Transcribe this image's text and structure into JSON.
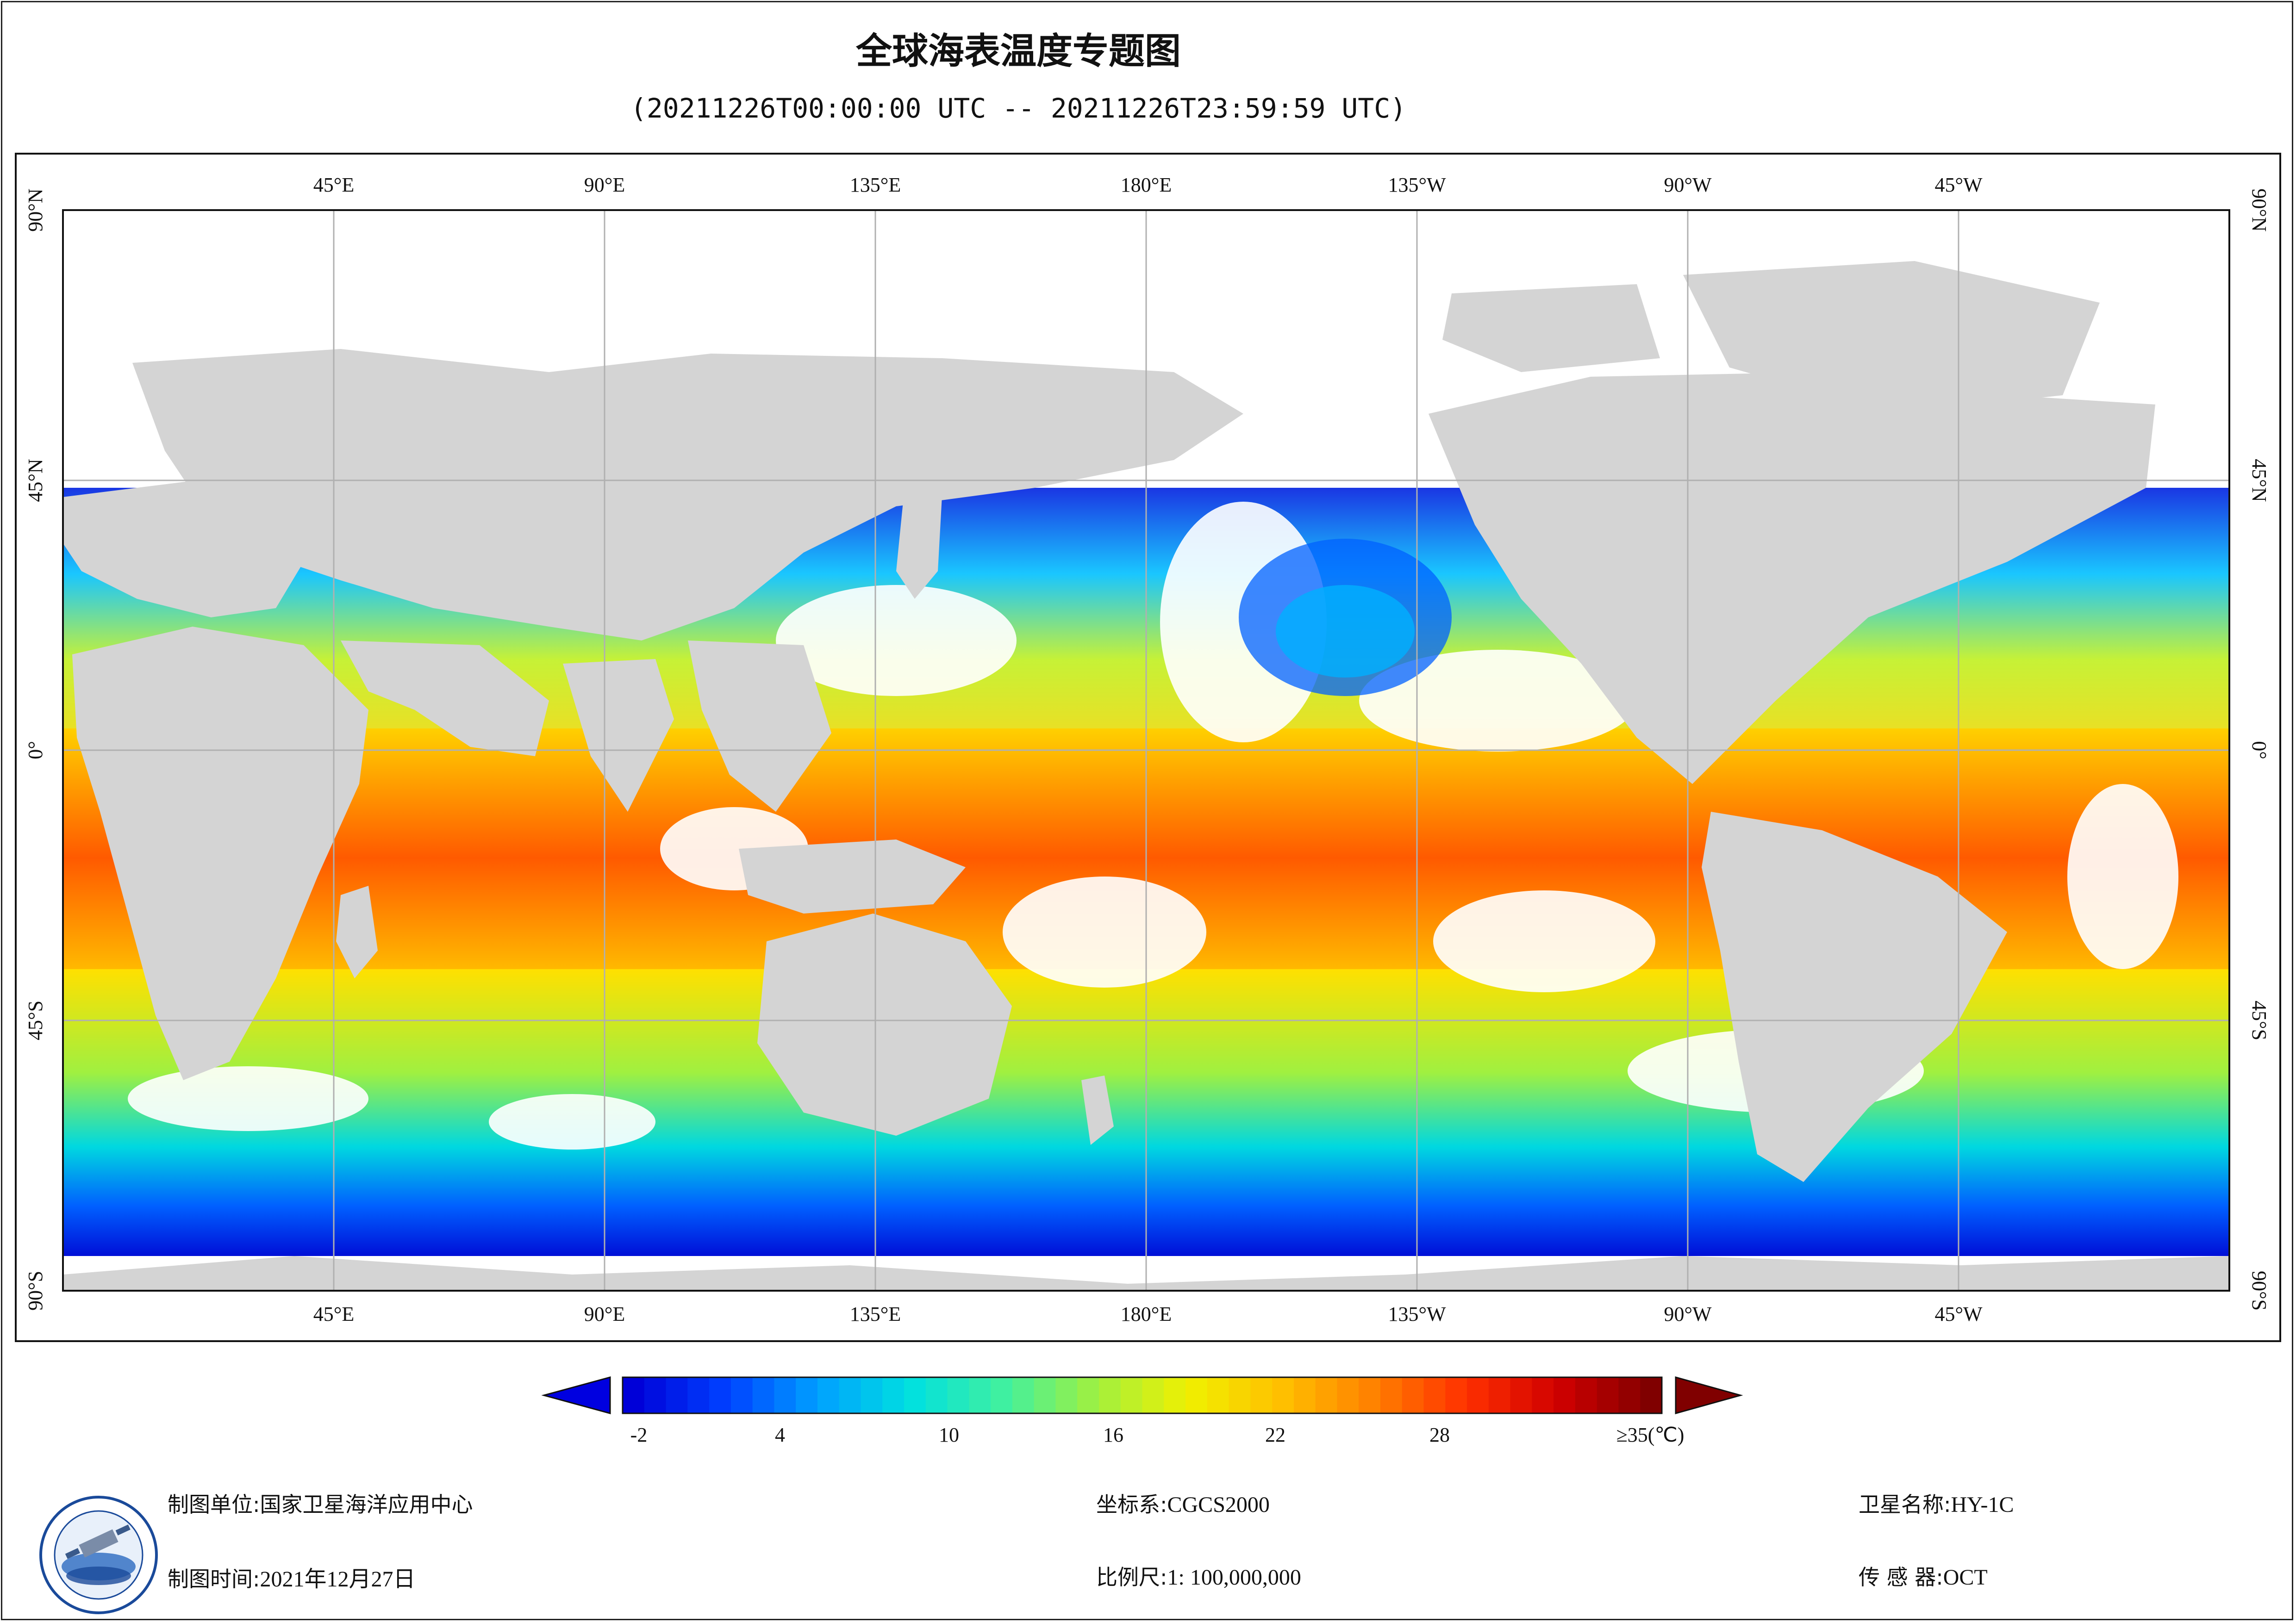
{
  "header": {
    "title": "全球海表温度专题图",
    "subtitle": "(20211226T00:00:00 UTC -- 20211226T23:59:59 UTC)"
  },
  "map": {
    "top_longitude_labels": [
      "45°E",
      "90°E",
      "135°E",
      "180°E",
      "135°W",
      "90°W",
      "45°W"
    ],
    "bottom_longitude_labels": [
      "45°E",
      "90°E",
      "135°E",
      "180°E",
      "135°W",
      "90°W",
      "45°W"
    ],
    "latitude_labels": [
      "90°N",
      "45°N",
      "0°",
      "45°S",
      "90°S"
    ],
    "land_color": "#d4d4d4",
    "ocean_nodata_color": "#ffffff",
    "grid_color": "#b0b0b0"
  },
  "legend": {
    "tick_labels": [
      "-2",
      "4",
      "10",
      "16",
      "22",
      "28",
      "≥35(℃)"
    ],
    "min_value": -2,
    "max_value": 35,
    "unit": "℃",
    "color_stops": [
      "#0000d8",
      "#0040ff",
      "#00a0ff",
      "#00e0e0",
      "#40f0a0",
      "#a0f040",
      "#f0f000",
      "#ffc000",
      "#ff8000",
      "#ff3000",
      "#d00000",
      "#800000"
    ]
  },
  "footer": {
    "org_key": "制图单位:",
    "org_value": "国家卫星海洋应用中心",
    "time_key": "制图时间:",
    "time_value": "2021年12月27日",
    "crs_key": "坐标系:",
    "crs_value": "CGCS2000",
    "scale_key": "比例尺:",
    "scale_value": "1: 100,000,000",
    "satellite_key": "卫星名称:",
    "satellite_value": "HY-1C",
    "sensor_key": "传 感 器:",
    "sensor_value": "OCT"
  },
  "logo": {
    "icon": "nsoas-logo-icon"
  }
}
